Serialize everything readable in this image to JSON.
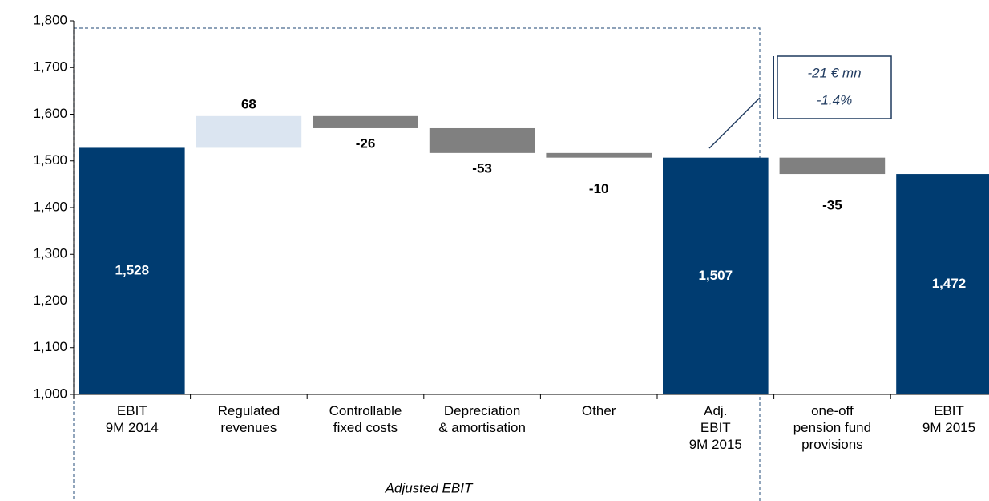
{
  "chart_data": {
    "type": "waterfall",
    "categories": [
      [
        "EBIT",
        "9M 2014"
      ],
      [
        "Regulated",
        "revenues"
      ],
      [
        "Controllable",
        "fixed costs"
      ],
      [
        "Depreciation",
        "& amortisation"
      ],
      [
        "Other"
      ],
      [
        "Adj.",
        "EBIT",
        "9M 2015"
      ],
      [
        "one-off",
        "pension fund",
        "provisions"
      ],
      [
        "EBIT",
        "9M 2015"
      ]
    ],
    "values": [
      1528,
      68,
      -26,
      -53,
      -10,
      1507,
      -35,
      1472
    ],
    "value_labels": [
      "1,528",
      "68",
      "-26",
      "-53",
      "-10",
      "1,507",
      "-35",
      "1,472"
    ],
    "measure": [
      "total",
      "relative",
      "relative",
      "relative",
      "relative",
      "total",
      "relative",
      "total"
    ],
    "colors": {
      "total": "#003c71",
      "increase": "#dbe5f1",
      "decrease": "#808080"
    },
    "ylim": [
      1000,
      1800
    ],
    "yticks": [
      {
        "value": 1000,
        "label": "1,000"
      },
      {
        "value": 1100,
        "label": "1,100"
      },
      {
        "value": 1200,
        "label": "1,200"
      },
      {
        "value": 1300,
        "label": "1,300"
      },
      {
        "value": 1400,
        "label": "1,400"
      },
      {
        "value": 1500,
        "label": "1,500"
      },
      {
        "value": 1600,
        "label": "1,600"
      },
      {
        "value": 1700,
        "label": "1,700"
      },
      {
        "value": 1800,
        "label": "1,800"
      }
    ],
    "annotations": [
      "-21 € mn",
      "-1.4%"
    ],
    "group_label": "Adjusted EBIT"
  }
}
